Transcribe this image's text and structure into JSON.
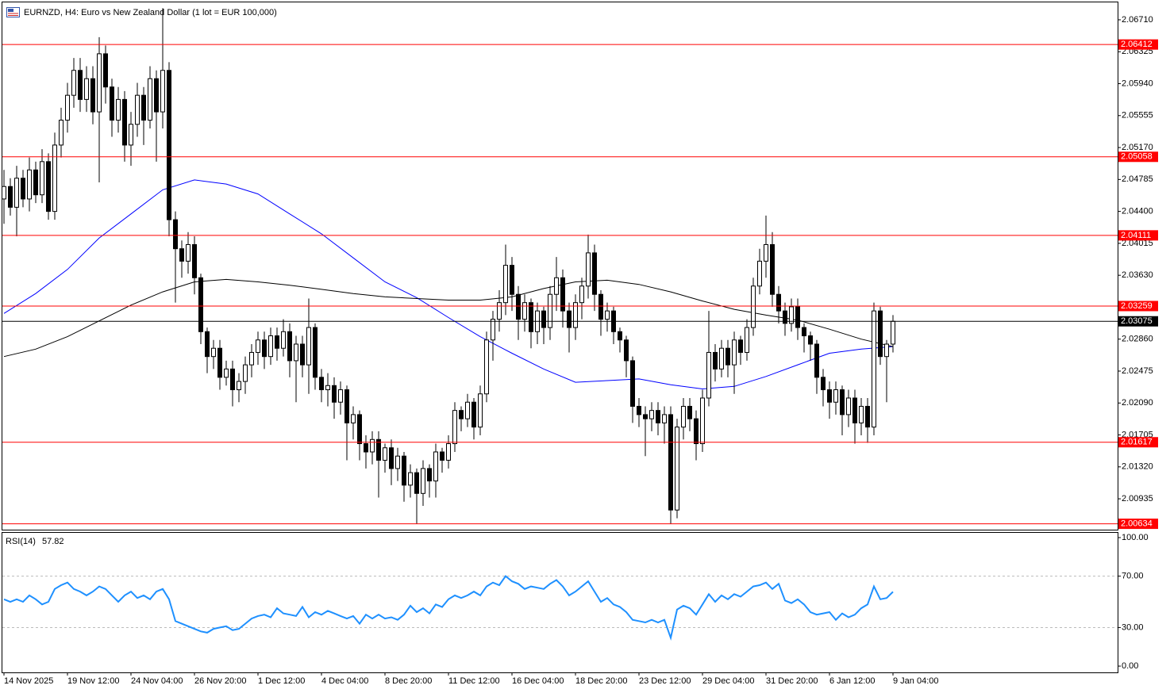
{
  "header": {
    "title": "EURNZD, H4:  Euro vs New Zealand Dollar (1 lot = EUR 100,000)"
  },
  "chart_data": [
    {
      "type": "candlestick",
      "up_color": "#ffffff",
      "down_color": "#000000",
      "xlim": [
        -0.25,
        175.375
      ],
      "xticks": [
        {
          "value": 0,
          "label": "14 Nov 2025"
        },
        {
          "value": 10,
          "label": "19 Nov 12:00"
        },
        {
          "value": 20,
          "label": "24 Nov 04:00"
        },
        {
          "value": 30,
          "label": "26 Nov 20:00"
        },
        {
          "value": 40,
          "label": "1 Dec 12:00"
        },
        {
          "value": 50,
          "label": "4 Dec 04:00"
        },
        {
          "value": 60,
          "label": "8 Dec 20:00"
        },
        {
          "value": 70,
          "label": "11 Dec 12:00"
        },
        {
          "value": 80,
          "label": "16 Dec 04:00"
        },
        {
          "value": 90,
          "label": "18 Dec 20:00"
        },
        {
          "value": 100,
          "label": "23 Dec 12:00"
        },
        {
          "value": 110,
          "label": "29 Dec 04:00"
        },
        {
          "value": 120,
          "label": "31 Dec 20:00"
        },
        {
          "value": 130,
          "label": "6 Jan 12:00"
        },
        {
          "value": 140,
          "label": "9 Jan 04:00"
        }
      ],
      "ylim": [
        2.00563,
        2.0692
      ],
      "yticks": [
        {
          "value": 2.0671,
          "label": "2.06710"
        },
        {
          "value": 2.06325,
          "label": "2.06325"
        },
        {
          "value": 2.0594,
          "label": "2.05940"
        },
        {
          "value": 2.05555,
          "label": "2.05555"
        },
        {
          "value": 2.0517,
          "label": "2.05170"
        },
        {
          "value": 2.04785,
          "label": "2.04785"
        },
        {
          "value": 2.044,
          "label": "2.04400"
        },
        {
          "value": 2.04015,
          "label": "2.04015"
        },
        {
          "value": 2.0363,
          "label": "2.03630"
        },
        {
          "value": 2.0286,
          "label": "2.02860"
        },
        {
          "value": 2.02475,
          "label": "2.02475"
        },
        {
          "value": 2.0209,
          "label": "2.02090"
        },
        {
          "value": 2.01705,
          "label": "2.01705"
        },
        {
          "value": 2.0132,
          "label": "2.01320"
        },
        {
          "value": 2.00935,
          "label": "2.00935"
        }
      ],
      "open": [
        2.0455,
        2.047,
        2.0445,
        2.048,
        2.0455,
        2.049,
        2.046,
        2.05,
        2.044,
        2.052,
        2.055,
        2.058,
        2.061,
        2.0575,
        2.06,
        2.056,
        2.063,
        2.059,
        2.055,
        2.0575,
        2.052,
        2.0545,
        2.058,
        2.055,
        2.06,
        2.056,
        2.061,
        2.043,
        2.0395,
        2.038,
        2.04,
        2.036,
        2.0295,
        2.0265,
        2.0275,
        2.024,
        2.025,
        2.0225,
        2.0235,
        2.0255,
        2.027,
        2.0285,
        2.0265,
        2.029,
        2.0275,
        2.0295,
        2.026,
        2.028,
        2.0255,
        2.03,
        2.024,
        2.0225,
        2.023,
        2.021,
        2.0225,
        2.0185,
        2.0195,
        2.016,
        2.015,
        2.0165,
        2.014,
        2.0155,
        2.013,
        2.0145,
        2.011,
        2.0125,
        2.01,
        2.013,
        2.0115,
        2.015,
        2.014,
        2.016,
        2.02,
        2.019,
        2.021,
        2.018,
        2.022,
        2.0285,
        2.031,
        2.033,
        2.0375,
        2.034,
        2.031,
        2.033,
        2.0295,
        2.032,
        2.03,
        2.034,
        2.036,
        2.032,
        2.03,
        2.033,
        2.035,
        2.039,
        2.034,
        2.031,
        2.032,
        2.0295,
        2.0285,
        2.026,
        2.0205,
        2.0195,
        2.019,
        2.02,
        2.0185,
        2.0195,
        2.008,
        2.018,
        2.0205,
        2.019,
        2.016,
        2.0215,
        2.027,
        2.025,
        2.0275,
        2.0255,
        2.0285,
        2.027,
        2.03,
        2.035,
        2.038,
        2.04,
        2.034,
        2.032,
        2.0305,
        2.0325,
        2.03,
        2.029,
        2.028,
        2.024,
        2.0225,
        2.021,
        2.0225,
        2.0195,
        2.0215,
        2.0185,
        2.0205,
        2.018,
        2.032,
        2.0265,
        2.028
      ],
      "high": [
        2.049,
        2.048,
        2.0495,
        2.049,
        2.0505,
        2.05,
        2.0515,
        2.051,
        2.0535,
        2.0565,
        2.0595,
        2.0625,
        2.0625,
        2.0615,
        2.0615,
        2.065,
        2.064,
        2.06,
        2.059,
        2.0585,
        2.056,
        2.0595,
        2.059,
        2.0615,
        2.061,
        2.0685,
        2.062,
        2.044,
        2.0405,
        2.0415,
        2.041,
        2.0365,
        2.03,
        2.0285,
        2.0285,
        2.026,
        2.026,
        2.0245,
        2.0265,
        2.028,
        2.0295,
        2.0295,
        2.03,
        2.03,
        2.031,
        2.0305,
        2.029,
        2.029,
        2.0335,
        2.0305,
        2.025,
        2.0245,
        2.024,
        2.0235,
        2.023,
        2.0205,
        2.02,
        2.017,
        2.0175,
        2.0175,
        2.016,
        2.0165,
        2.0155,
        2.015,
        2.0135,
        2.013,
        2.014,
        2.0135,
        2.016,
        2.0155,
        2.017,
        2.021,
        2.0205,
        2.022,
        2.0215,
        2.023,
        2.0295,
        2.032,
        2.0345,
        2.04,
        2.0385,
        2.035,
        2.034,
        2.0335,
        2.033,
        2.0325,
        2.035,
        2.0385,
        2.037,
        2.033,
        2.034,
        2.036,
        2.0412,
        2.04,
        2.0345,
        2.033,
        2.0325,
        2.03,
        2.029,
        2.0265,
        2.0215,
        2.0205,
        2.021,
        2.021,
        2.0205,
        2.0205,
        2.019,
        2.0215,
        2.0215,
        2.02,
        2.0225,
        2.032,
        2.028,
        2.0285,
        2.0285,
        2.0295,
        2.029,
        2.031,
        2.036,
        2.0395,
        2.0435,
        2.0415,
        2.035,
        2.033,
        2.0335,
        2.0335,
        2.0305,
        2.0295,
        2.0285,
        2.025,
        2.0235,
        2.0235,
        2.023,
        2.0225,
        2.0225,
        2.0215,
        2.0215,
        2.033,
        2.0325,
        2.0285,
        2.0315
      ],
      "low": [
        2.0425,
        2.0435,
        2.041,
        2.0445,
        2.044,
        2.045,
        2.045,
        2.043,
        2.043,
        2.0505,
        2.0535,
        2.0565,
        2.056,
        2.056,
        2.0545,
        2.0475,
        2.057,
        2.053,
        2.0535,
        2.05,
        2.0495,
        2.053,
        2.052,
        2.054,
        2.05,
        2.054,
        2.041,
        2.033,
        2.036,
        2.0365,
        2.034,
        2.028,
        2.0245,
        2.025,
        2.0225,
        2.023,
        2.0205,
        2.021,
        2.022,
        2.024,
        2.0255,
        2.025,
        2.0255,
        2.026,
        2.0265,
        2.024,
        2.021,
        2.024,
        2.022,
        2.0225,
        2.021,
        2.0205,
        2.019,
        2.0195,
        2.014,
        2.0165,
        2.014,
        2.013,
        2.0135,
        2.0095,
        2.0125,
        2.011,
        2.0115,
        2.009,
        2.0095,
        2.0063,
        2.0085,
        2.0095,
        2.0095,
        2.0125,
        2.013,
        2.015,
        2.0175,
        2.018,
        2.0165,
        2.017,
        2.021,
        2.026,
        2.0295,
        2.0315,
        2.032,
        2.0285,
        2.0295,
        2.0275,
        2.028,
        2.028,
        2.0285,
        2.032,
        2.03,
        2.027,
        2.0285,
        2.031,
        2.0335,
        2.032,
        2.029,
        2.0295,
        2.028,
        2.027,
        2.024,
        2.0185,
        2.018,
        2.0145,
        2.0175,
        2.017,
        2.016,
        2.0063,
        2.007,
        2.0165,
        2.0175,
        2.014,
        2.015,
        2.0205,
        2.0235,
        2.024,
        2.024,
        2.022,
        2.0255,
        2.026,
        2.029,
        2.034,
        2.036,
        2.0325,
        2.0305,
        2.029,
        2.0295,
        2.0285,
        2.027,
        2.026,
        2.022,
        2.0205,
        2.019,
        2.0195,
        2.017,
        2.018,
        2.016,
        2.017,
        2.0161,
        2.017,
        2.0255,
        2.021,
        2.027
      ],
      "close": [
        2.047,
        2.0445,
        2.048,
        2.0455,
        2.049,
        2.046,
        2.05,
        2.044,
        2.052,
        2.055,
        2.058,
        2.061,
        2.0575,
        2.06,
        2.056,
        2.063,
        2.059,
        2.055,
        2.0575,
        2.052,
        2.0545,
        2.058,
        2.055,
        2.06,
        2.056,
        2.061,
        2.043,
        2.0395,
        2.038,
        2.04,
        2.036,
        2.0295,
        2.0265,
        2.0275,
        2.024,
        2.025,
        2.0225,
        2.0235,
        2.0255,
        2.027,
        2.0285,
        2.0265,
        2.029,
        2.0275,
        2.0295,
        2.026,
        2.028,
        2.0255,
        2.03,
        2.024,
        2.0225,
        2.023,
        2.021,
        2.0225,
        2.0185,
        2.0195,
        2.016,
        2.015,
        2.0165,
        2.014,
        2.0155,
        2.013,
        2.0145,
        2.011,
        2.0125,
        2.01,
        2.013,
        2.0115,
        2.015,
        2.014,
        2.016,
        2.02,
        2.019,
        2.021,
        2.018,
        2.022,
        2.0285,
        2.031,
        2.033,
        2.0375,
        2.034,
        2.031,
        2.033,
        2.0295,
        2.032,
        2.03,
        2.034,
        2.036,
        2.032,
        2.03,
        2.033,
        2.035,
        2.039,
        2.034,
        2.031,
        2.032,
        2.0295,
        2.0285,
        2.026,
        2.0205,
        2.0195,
        2.019,
        2.02,
        2.0185,
        2.0195,
        2.008,
        2.018,
        2.0205,
        2.019,
        2.016,
        2.0215,
        2.027,
        2.025,
        2.0275,
        2.0255,
        2.0285,
        2.027,
        2.03,
        2.035,
        2.038,
        2.04,
        2.034,
        2.032,
        2.0305,
        2.0325,
        2.03,
        2.029,
        2.028,
        2.024,
        2.0225,
        2.021,
        2.0225,
        2.0195,
        2.0215,
        2.0185,
        2.0205,
        2.018,
        2.032,
        2.0265,
        2.028,
        2.03075
      ],
      "series": [
        {
          "color": "#0000ff",
          "x": [
            0,
            5,
            10,
            15,
            20,
            25,
            30,
            35,
            40,
            45,
            50,
            55,
            60,
            65,
            70,
            75,
            80,
            85,
            90,
            95,
            100,
            105,
            110,
            115,
            120,
            125,
            130,
            135,
            140
          ],
          "values": [
            2.0317,
            2.0341,
            2.037,
            2.0408,
            2.0437,
            2.0466,
            2.0478,
            2.0473,
            2.0461,
            2.0437,
            2.0413,
            2.0384,
            2.0355,
            2.0336,
            2.0312,
            2.0289,
            2.0269,
            2.025,
            2.0234,
            2.0236,
            2.0238,
            2.0231,
            2.0226,
            2.0229,
            2.0241,
            2.0255,
            2.0269,
            2.0274,
            2.0277
          ]
        },
        {
          "color": "#000000",
          "x": [
            0,
            5,
            10,
            15,
            20,
            25,
            30,
            35,
            40,
            45,
            50,
            55,
            60,
            65,
            70,
            75,
            80,
            85,
            90,
            95,
            100,
            105,
            110,
            115,
            120,
            125,
            130,
            135,
            140
          ],
          "values": [
            2.0265,
            2.0274,
            2.0289,
            2.0308,
            2.0327,
            2.0343,
            2.0355,
            2.0358,
            2.0355,
            2.0351,
            2.0346,
            2.0341,
            2.0337,
            2.0335,
            2.0333,
            2.0333,
            2.0337,
            2.0347,
            2.0355,
            2.0357,
            2.0352,
            2.0343,
            2.0332,
            2.0322,
            2.0315,
            2.0309,
            2.0298,
            2.0286,
            2.0277
          ]
        }
      ],
      "levels": [
        2.06412,
        2.05058,
        2.04111,
        2.03259,
        2.01617,
        2.00634
      ],
      "level_color": "#ff0000",
      "current_price": 2.03075,
      "current_color": "#000000"
    },
    {
      "type": "line",
      "title": "RSI(14)",
      "last_value": 57.82,
      "color": "#1e90ff",
      "ylim": [
        -4.9,
        103.7
      ],
      "yticks": [
        {
          "value": 100,
          "label": "100.00"
        },
        {
          "value": 70,
          "label": "70.00"
        },
        {
          "value": 30,
          "label": "30.00"
        },
        {
          "value": 0,
          "label": "0.00"
        }
      ],
      "dashed_levels": [
        70,
        30
      ],
      "values": [
        52,
        50,
        52,
        50,
        55,
        52,
        48,
        50,
        60,
        63,
        65,
        60,
        58,
        55,
        58,
        62,
        60,
        55,
        50,
        55,
        58,
        53,
        55,
        52,
        58,
        60,
        52,
        35,
        33,
        31,
        29,
        27,
        26,
        29,
        30,
        31,
        28,
        29,
        33,
        37,
        39,
        40,
        38,
        45,
        41,
        40,
        39,
        46,
        38,
        42,
        40,
        43,
        41,
        39,
        37,
        39,
        33,
        40,
        37,
        40,
        37,
        38,
        36,
        40,
        47,
        42,
        45,
        41,
        48,
        46,
        52,
        55,
        53,
        55,
        58,
        55,
        62,
        65,
        63,
        70,
        66,
        64,
        60,
        62,
        61,
        60,
        64,
        67,
        62,
        55,
        58,
        62,
        66,
        58,
        50,
        53,
        48,
        46,
        42,
        36,
        35,
        34,
        36,
        34,
        36,
        22,
        44,
        47,
        45,
        40,
        48,
        56,
        50,
        55,
        52,
        56,
        54,
        58,
        62,
        63,
        65,
        60,
        64,
        51,
        49,
        52,
        48,
        42,
        40,
        41,
        42,
        36,
        41,
        38,
        40,
        45,
        48,
        62,
        52,
        53,
        57.82
      ]
    }
  ]
}
